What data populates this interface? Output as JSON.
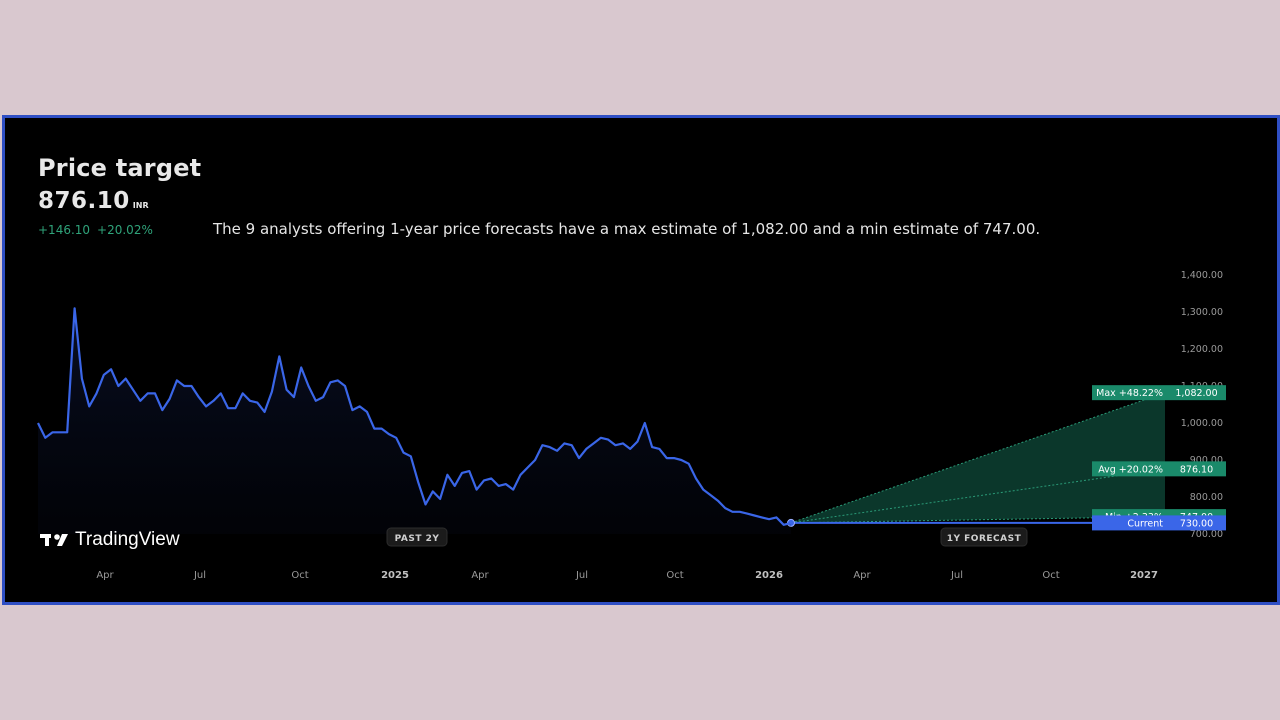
{
  "header": {
    "title": "Price target",
    "price": "876.10",
    "currency": "INR",
    "change_abs": "+146.10",
    "change_pct": "+20.02%",
    "summary": "The 9 analysts offering 1-year price forecasts have a max estimate of 1,082.00 and a min estimate of 747.00."
  },
  "logo": {
    "text": "TradingView",
    "icon": "tradingview-logo-icon"
  },
  "pills": {
    "past": "PAST 2Y",
    "forecast": "1Y FORECAST"
  },
  "colors": {
    "line": "#3a66e8",
    "forecast_fill": "#0f4a3a",
    "forecast_line": "#2a9a77",
    "label_green": "#1a8a6a",
    "label_blue": "#3a66e8",
    "positive": "#2fa37a"
  },
  "chart_data": {
    "type": "line",
    "y_ticks": [
      "1,400.00",
      "1,300.00",
      "1,200.00",
      "1,100.00",
      "1,000.00",
      "900.00",
      "800.00",
      "700.00"
    ],
    "x_ticks": [
      "Apr",
      "Jul",
      "Oct",
      "2025",
      "Apr",
      "Jul",
      "Oct",
      "2026",
      "Apr",
      "Jul",
      "Oct",
      "2027"
    ],
    "ylim": [
      700,
      1400
    ],
    "history": [
      1000,
      960,
      975,
      975,
      975,
      1310,
      1120,
      1045,
      1080,
      1130,
      1145,
      1100,
      1120,
      1090,
      1060,
      1080,
      1080,
      1035,
      1065,
      1115,
      1100,
      1100,
      1070,
      1045,
      1060,
      1080,
      1040,
      1040,
      1080,
      1060,
      1055,
      1030,
      1085,
      1180,
      1090,
      1070,
      1150,
      1100,
      1060,
      1070,
      1110,
      1115,
      1100,
      1035,
      1045,
      1030,
      985,
      985,
      970,
      960,
      920,
      910,
      840,
      780,
      815,
      795,
      860,
      830,
      865,
      870,
      820,
      845,
      850,
      830,
      835,
      820,
      860,
      880,
      900,
      940,
      935,
      925,
      945,
      940,
      905,
      930,
      945,
      960,
      955,
      940,
      945,
      930,
      950,
      1000,
      935,
      930,
      905,
      905,
      900,
      890,
      850,
      820,
      805,
      790,
      770,
      760,
      760,
      755,
      750,
      745,
      740,
      745,
      725,
      730
    ],
    "forecast": {
      "current": {
        "label": "Current",
        "value": "730.00",
        "y": 730
      },
      "max": {
        "label": "Max +48.22%",
        "value": "1,082.00",
        "y": 1082
      },
      "avg": {
        "label": "Avg +20.02%",
        "value": "876.10",
        "y": 876.1
      },
      "min": {
        "label": "Min +2.33%",
        "value": "747.00",
        "y": 747
      }
    }
  }
}
